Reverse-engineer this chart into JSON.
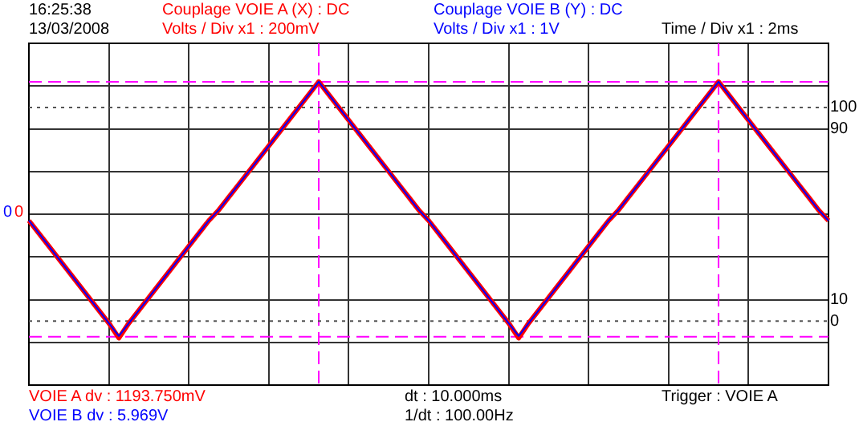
{
  "chart_data": {
    "type": "line",
    "annotations": [
      "16:25:38",
      "13/03/2008",
      "Couplage VOIE A (X) : DC",
      "Volts / Div x1 : 200mV",
      "Couplage VOIE B (Y) : DC",
      "Volts / Div x1 : 1V",
      "Time / Div x1 : 2ms",
      "VOIE A dv : 1193.750mV",
      "VOIE B dv : 5.969V",
      "dt : 10.000ms",
      "1/dt : 100.00Hz",
      "Trigger : VOIE A",
      "0",
      "0"
    ],
    "categories": [
      null,
      null,
      null,
      null,
      null,
      null,
      null,
      null,
      null,
      null,
      null,
      null,
      null,
      null,
      null,
      null,
      null,
      null,
      null,
      null,
      null,
      null,
      null,
      null,
      null,
      null,
      null,
      null,
      null,
      null,
      null,
      null,
      null,
      null,
      null,
      null,
      null,
      null,
      null,
      null,
      null,
      null,
      null,
      null,
      null,
      null,
      null,
      null,
      null,
      null,
      null,
      null,
      null,
      null,
      null,
      null,
      null,
      null,
      null,
      null,
      null,
      null,
      null,
      null,
      null,
      null,
      null,
      null,
      null,
      null,
      null,
      null,
      null,
      null,
      null,
      null,
      null,
      null,
      null,
      null,
      null
    ],
    "series": [
      {
        "color": "#ff0000",
        "values": [
          47,
          41,
          35,
          29,
          23,
          17,
          11,
          5,
          -1,
          -8,
          -1,
          5,
          11,
          17,
          23,
          29,
          35,
          41,
          47,
          52,
          58,
          64,
          70,
          76,
          82,
          88,
          94,
          100,
          106,
          112,
          106,
          100,
          94,
          88,
          82,
          76,
          70,
          64,
          58,
          52,
          47,
          41,
          35,
          29,
          23,
          17,
          11,
          5,
          -1,
          -8,
          -1,
          5,
          11,
          17,
          23,
          29,
          35,
          41,
          47,
          52,
          58,
          64,
          70,
          76,
          82,
          88,
          94,
          100,
          106,
          112,
          106,
          100,
          94,
          88,
          82,
          76,
          70,
          64,
          58,
          52,
          47
        ]
      },
      {
        "color": "#0000ff",
        "values": [
          47,
          41,
          35,
          29,
          23,
          17,
          11,
          5,
          -1,
          -7,
          -1,
          5,
          11,
          17,
          23,
          29,
          35,
          41,
          47,
          52,
          58,
          64,
          70,
          76,
          82,
          88,
          94,
          100,
          106,
          112,
          106,
          100,
          94,
          88,
          82,
          76,
          70,
          64,
          58,
          52,
          47,
          41,
          35,
          29,
          23,
          17,
          11,
          5,
          -1,
          -7,
          -1,
          5,
          11,
          17,
          23,
          29,
          35,
          41,
          47,
          52,
          58,
          64,
          70,
          76,
          82,
          88,
          94,
          100,
          106,
          112,
          106,
          100,
          94,
          88,
          82,
          76,
          70,
          64,
          58,
          52,
          47
        ]
      }
    ],
    "ylim": [
      -30,
      130
    ],
    "yticks": [
      0,
      10,
      90,
      100
    ],
    "ref_lines": [
      {
        "axis": "y",
        "value": 112,
        "color": "#ff00ff",
        "line_style": "dashed"
      },
      {
        "axis": "y",
        "value": -7.4,
        "color": "#ff00ff",
        "line_style": "dashed"
      },
      {
        "axis": "y",
        "value": 100,
        "color": "#555555",
        "line_style": "dotted"
      },
      {
        "axis": "y",
        "value": 0,
        "color": "#555555",
        "line_style": "dotted"
      }
    ],
    "grid": true,
    "marker": "none",
    "line_style": "solid",
    "tick_labels": "y"
  }
}
